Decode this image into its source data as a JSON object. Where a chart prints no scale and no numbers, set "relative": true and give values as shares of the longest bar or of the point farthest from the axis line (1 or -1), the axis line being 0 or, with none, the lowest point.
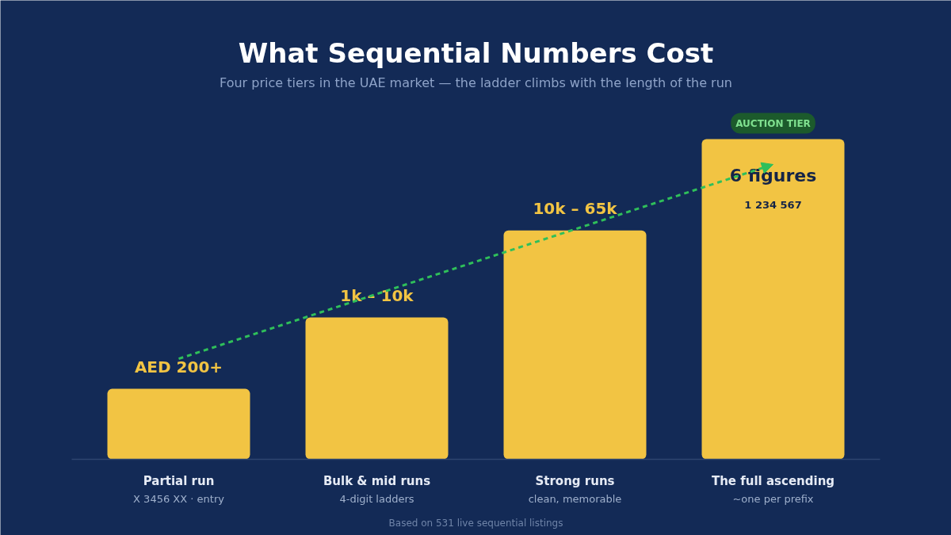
{
  "chart_data": {
    "type": "bar",
    "title": "What Sequential Numbers Cost",
    "subtitle": "Four price tiers in the UAE market — the ladder climbs with the length of the run",
    "categories": [
      "Partial run",
      "Bulk & mid runs",
      "Strong runs",
      "The full ascending"
    ],
    "values": [
      0.22,
      0.443,
      0.715,
      1
    ],
    "color": "#f2c443",
    "relative": true,
    "grid": false,
    "annotations": [
      "AED 200+",
      "1k – 10k",
      "10k – 65k",
      "6 figures",
      "X 3456 XX · entry",
      "4-digit ladders",
      "clean, memorable",
      "~one per prefix",
      "AUCTION TIER",
      "1 234 567",
      "Based on 531 live sequential listings"
    ]
  }
}
